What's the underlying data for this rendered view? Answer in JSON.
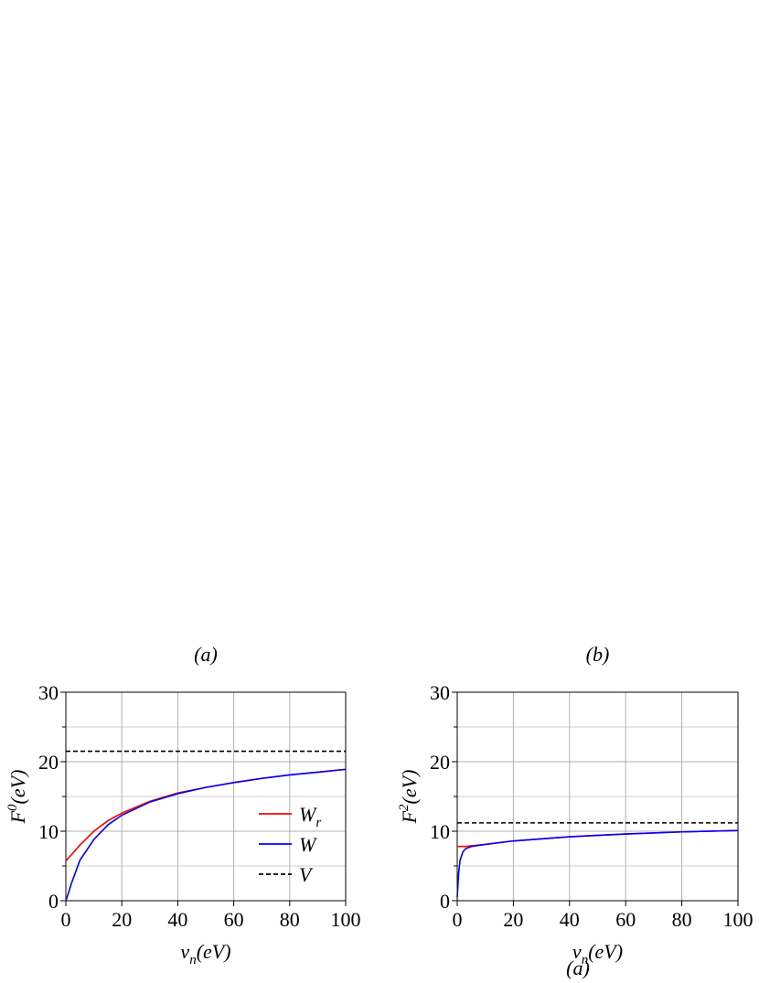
{
  "chart_data": [
    {
      "type": "line",
      "title": "(a)",
      "x_label": "ν_n(eV)",
      "y_label": "F^0(eV)",
      "xlim": [
        0,
        100
      ],
      "xticks": [
        0,
        20,
        40,
        60,
        80,
        100
      ],
      "ylim": [
        0,
        30
      ],
      "yticks": [
        0,
        10,
        20,
        30
      ],
      "minor_yticks": [
        5,
        15,
        25
      ],
      "grid": true,
      "legend": "lower right",
      "series": [
        {
          "name": "W_r",
          "color": "#ff0000",
          "dash": false,
          "x": [
            0,
            1,
            2,
            5,
            10,
            15,
            20,
            30,
            40,
            50,
            60,
            70,
            80,
            90,
            100
          ],
          "values": [
            5.7,
            6.2,
            6.6,
            8.0,
            10.0,
            11.5,
            12.6,
            14.3,
            15.5,
            16.3,
            17.0,
            17.6,
            18.1,
            18.5,
            18.9
          ]
        },
        {
          "name": "W",
          "color": "#0000ff",
          "dash": false,
          "x": [
            0,
            1,
            2,
            5,
            10,
            15,
            20,
            30,
            40,
            50,
            60,
            70,
            80,
            90,
            100
          ],
          "values": [
            0,
            1.2,
            2.5,
            5.8,
            8.8,
            10.9,
            12.3,
            14.2,
            15.4,
            16.3,
            17.0,
            17.6,
            18.1,
            18.5,
            18.9
          ]
        },
        {
          "name": "V",
          "color": "#000000",
          "dash": true,
          "x": [
            0,
            100
          ],
          "values": [
            21.5,
            21.5
          ]
        }
      ]
    },
    {
      "type": "line",
      "title": "(b)",
      "x_label": "ν_n(eV)",
      "y_label": "F^2(eV)",
      "xlim": [
        0,
        100
      ],
      "xticks": [
        0,
        20,
        40,
        60,
        80,
        100
      ],
      "ylim": [
        0,
        30
      ],
      "yticks": [
        0,
        10,
        20,
        30
      ],
      "minor_yticks": [
        5,
        15,
        25
      ],
      "grid": true,
      "series": [
        {
          "color": "#ff0000",
          "dash": false,
          "x": [
            0,
            0.5,
            1,
            2,
            3,
            5,
            10,
            20,
            40,
            60,
            80,
            100
          ],
          "values": [
            7.8,
            7.8,
            7.8,
            7.8,
            7.8,
            7.9,
            8.1,
            8.6,
            9.2,
            9.6,
            9.9,
            10.1
          ]
        },
        {
          "color": "#0000ff",
          "dash": false,
          "x": [
            0,
            0.5,
            1,
            2,
            3,
            5,
            10,
            20,
            40,
            60,
            80,
            100
          ],
          "values": [
            0.5,
            4.0,
            5.8,
            7.0,
            7.5,
            7.8,
            8.1,
            8.6,
            9.2,
            9.6,
            9.9,
            10.1
          ]
        },
        {
          "color": "#000000",
          "dash": true,
          "x": [
            0,
            100
          ],
          "values": [
            11.2,
            11.2
          ]
        }
      ]
    }
  ],
  "caption": "(a)"
}
